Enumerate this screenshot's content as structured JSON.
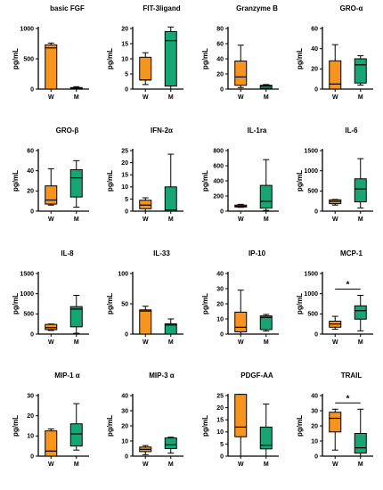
{
  "colors": {
    "W": "#f7941d",
    "M": "#17a673",
    "axis": "#000000"
  },
  "chart_data": [
    {
      "type": "box",
      "title": "basic FGF",
      "ylabel": "pg/mL",
      "categories": [
        "W",
        "M"
      ],
      "ylim": [
        0,
        1000
      ],
      "yticks": [
        "0",
        "500",
        "1000"
      ],
      "boxes": [
        {
          "min": 0,
          "q1": 0,
          "median": 680,
          "q3": 730,
          "max": 760
        },
        {
          "min": 0,
          "q1": 5,
          "median": 15,
          "q3": 25,
          "max": 40
        }
      ],
      "annotation": ""
    },
    {
      "type": "box",
      "title": "FIT-3ligand",
      "ylabel": "pg/mL",
      "categories": [
        "W",
        "M"
      ],
      "ylim": [
        0,
        20
      ],
      "yticks": [
        "0",
        "5",
        "10",
        "15",
        "20"
      ],
      "boxes": [
        {
          "min": 1.5,
          "q1": 3,
          "median": 3,
          "q3": 10.5,
          "max": 12
        },
        {
          "min": 0,
          "q1": 1,
          "median": 16,
          "q3": 19,
          "max": 20.5
        }
      ],
      "annotation": ""
    },
    {
      "type": "box",
      "title": "Granzyme B",
      "ylabel": "pg/mL",
      "categories": [
        "W",
        "M"
      ],
      "ylim": [
        0,
        80
      ],
      "yticks": [
        "0",
        "20",
        "40",
        "60",
        "80"
      ],
      "boxes": [
        {
          "min": 2,
          "q1": 5,
          "median": 16,
          "q3": 37,
          "max": 58
        },
        {
          "min": 0,
          "q1": 1,
          "median": 4,
          "q3": 5,
          "max": 6
        }
      ],
      "annotation": ""
    },
    {
      "type": "box",
      "title": "GRO-α",
      "ylabel": "pg/mL",
      "categories": [
        "W",
        "M"
      ],
      "ylim": [
        0,
        60
      ],
      "yticks": [
        "0",
        "20",
        "40",
        "60"
      ],
      "boxes": [
        {
          "min": 0,
          "q1": 0,
          "median": 5,
          "q3": 28,
          "max": 44
        },
        {
          "min": 4,
          "q1": 6,
          "median": 24,
          "q3": 30,
          "max": 33
        }
      ],
      "annotation": ""
    },
    {
      "type": "box",
      "title": "GRO-β",
      "ylabel": "pg/mL",
      "categories": [
        "W",
        "M"
      ],
      "ylim": [
        0,
        60
      ],
      "yticks": [
        "0",
        "20",
        "40",
        "60"
      ],
      "boxes": [
        {
          "min": 6,
          "q1": 7,
          "median": 11,
          "q3": 25,
          "max": 42
        },
        {
          "min": 4,
          "q1": 14,
          "median": 33,
          "q3": 41,
          "max": 50
        }
      ],
      "annotation": ""
    },
    {
      "type": "box",
      "title": "IFN-2α",
      "ylabel": "pg/mL",
      "categories": [
        "W",
        "M"
      ],
      "ylim": [
        0,
        25
      ],
      "yticks": [
        "0",
        "5",
        "10",
        "15",
        "20",
        "25"
      ],
      "boxes": [
        {
          "min": 0,
          "q1": 1,
          "median": 2.5,
          "q3": 4.5,
          "max": 5.5
        },
        {
          "min": 0,
          "q1": 0,
          "median": 0.5,
          "q3": 10,
          "max": 23.5
        }
      ],
      "annotation": ""
    },
    {
      "type": "box",
      "title": "IL-1ra",
      "ylabel": "pg/mL",
      "categories": [
        "W",
        "M"
      ],
      "ylim": [
        0,
        800
      ],
      "yticks": [
        "0",
        "200",
        "400",
        "600",
        "800"
      ],
      "boxes": [
        {
          "min": 50,
          "q1": 55,
          "median": 65,
          "q3": 80,
          "max": 90
        },
        {
          "min": 10,
          "q1": 40,
          "median": 130,
          "q3": 340,
          "max": 680
        }
      ],
      "annotation": ""
    },
    {
      "type": "box",
      "title": "IL-6",
      "ylabel": "pg/mL",
      "categories": [
        "W",
        "M"
      ],
      "ylim": [
        0,
        1500
      ],
      "yticks": [
        "0",
        "500",
        "1000",
        "1500"
      ],
      "boxes": [
        {
          "min": 150,
          "q1": 185,
          "median": 240,
          "q3": 280,
          "max": 290
        },
        {
          "min": 80,
          "q1": 230,
          "median": 550,
          "q3": 800,
          "max": 1300
        }
      ],
      "annotation": ""
    },
    {
      "type": "box",
      "title": "IL-8",
      "ylabel": "pg/mL",
      "categories": [
        "W",
        "M"
      ],
      "ylim": [
        0,
        1500
      ],
      "yticks": [
        "0",
        "500",
        "1000",
        "1500"
      ],
      "boxes": [
        {
          "min": 90,
          "q1": 110,
          "median": 160,
          "q3": 240,
          "max": 250
        },
        {
          "min": 20,
          "q1": 180,
          "median": 620,
          "q3": 680,
          "max": 960
        }
      ],
      "annotation": ""
    },
    {
      "type": "box",
      "title": "IL-33",
      "ylabel": "pg/mL",
      "categories": [
        "W",
        "M"
      ],
      "ylim": [
        0,
        100
      ],
      "yticks": [
        "0",
        "50",
        "100"
      ],
      "boxes": [
        {
          "min": 0,
          "q1": 0,
          "median": 38,
          "q3": 40,
          "max": 46
        },
        {
          "min": 0,
          "q1": 0,
          "median": 15,
          "q3": 17,
          "max": 25
        }
      ],
      "annotation": ""
    },
    {
      "type": "box",
      "title": "IP-10",
      "ylabel": "pg/mL",
      "categories": [
        "W",
        "M"
      ],
      "ylim": [
        0,
        40
      ],
      "yticks": [
        "0",
        "10",
        "20",
        "30",
        "40"
      ],
      "boxes": [
        {
          "min": 0,
          "q1": 1.5,
          "median": 4.5,
          "q3": 14.5,
          "max": 29
        },
        {
          "min": 2,
          "q1": 3,
          "median": 11,
          "q3": 12,
          "max": 13
        }
      ],
      "annotation": ""
    },
    {
      "type": "box",
      "title": "MCP-1",
      "ylabel": "pg/mL",
      "categories": [
        "W",
        "M"
      ],
      "ylim": [
        0,
        1500
      ],
      "yticks": [
        "0",
        "500",
        "1000",
        "1500"
      ],
      "boxes": [
        {
          "min": 120,
          "q1": 170,
          "median": 250,
          "q3": 320,
          "max": 440
        },
        {
          "min": 80,
          "q1": 370,
          "median": 580,
          "q3": 700,
          "max": 960
        }
      ],
      "annotation": "*"
    },
    {
      "type": "box",
      "title": "MIP-1 α",
      "ylabel": "pg/mL",
      "categories": [
        "W",
        "M"
      ],
      "ylim": [
        0,
        30
      ],
      "yticks": [
        "0",
        "10",
        "20",
        "30"
      ],
      "boxes": [
        {
          "min": 0,
          "q1": 0,
          "median": 2.5,
          "q3": 12.5,
          "max": 13.5
        },
        {
          "min": 3,
          "q1": 5,
          "median": 11,
          "q3": 16,
          "max": 26
        }
      ],
      "annotation": ""
    },
    {
      "type": "box",
      "title": "MIP-3 α",
      "ylabel": "pg/mL",
      "categories": [
        "W",
        "M"
      ],
      "ylim": [
        0,
        40
      ],
      "yticks": [
        "0",
        "10",
        "20",
        "30",
        "40"
      ],
      "boxes": [
        {
          "min": 1,
          "q1": 3,
          "median": 4.5,
          "q3": 6,
          "max": 7
        },
        {
          "min": 2,
          "q1": 5,
          "median": 7.5,
          "q3": 12,
          "max": 12.5
        }
      ],
      "annotation": ""
    },
    {
      "type": "box",
      "title": "PDGF-AA",
      "ylabel": "pg/mL",
      "categories": [
        "W",
        "M"
      ],
      "ylim": [
        0,
        25
      ],
      "yticks": [
        "0",
        "5",
        "10",
        "15",
        "20",
        "25"
      ],
      "boxes": [
        {
          "min": 0,
          "q1": 8,
          "median": 12,
          "q3": 25.5,
          "max": 25.5
        },
        {
          "min": 0,
          "q1": 3,
          "median": 4.5,
          "q3": 12,
          "max": 21.5
        }
      ],
      "annotation": ""
    },
    {
      "type": "box",
      "title": "TRAIL",
      "ylabel": "pg/mL",
      "categories": [
        "W",
        "M"
      ],
      "ylim": [
        0,
        40
      ],
      "yticks": [
        "0",
        "10",
        "20",
        "30",
        "40"
      ],
      "boxes": [
        {
          "min": 4,
          "q1": 16,
          "median": 25,
          "q3": 29,
          "max": 31
        },
        {
          "min": 0,
          "q1": 2,
          "median": 5.5,
          "q3": 15,
          "max": 31
        }
      ],
      "annotation": "*"
    }
  ]
}
